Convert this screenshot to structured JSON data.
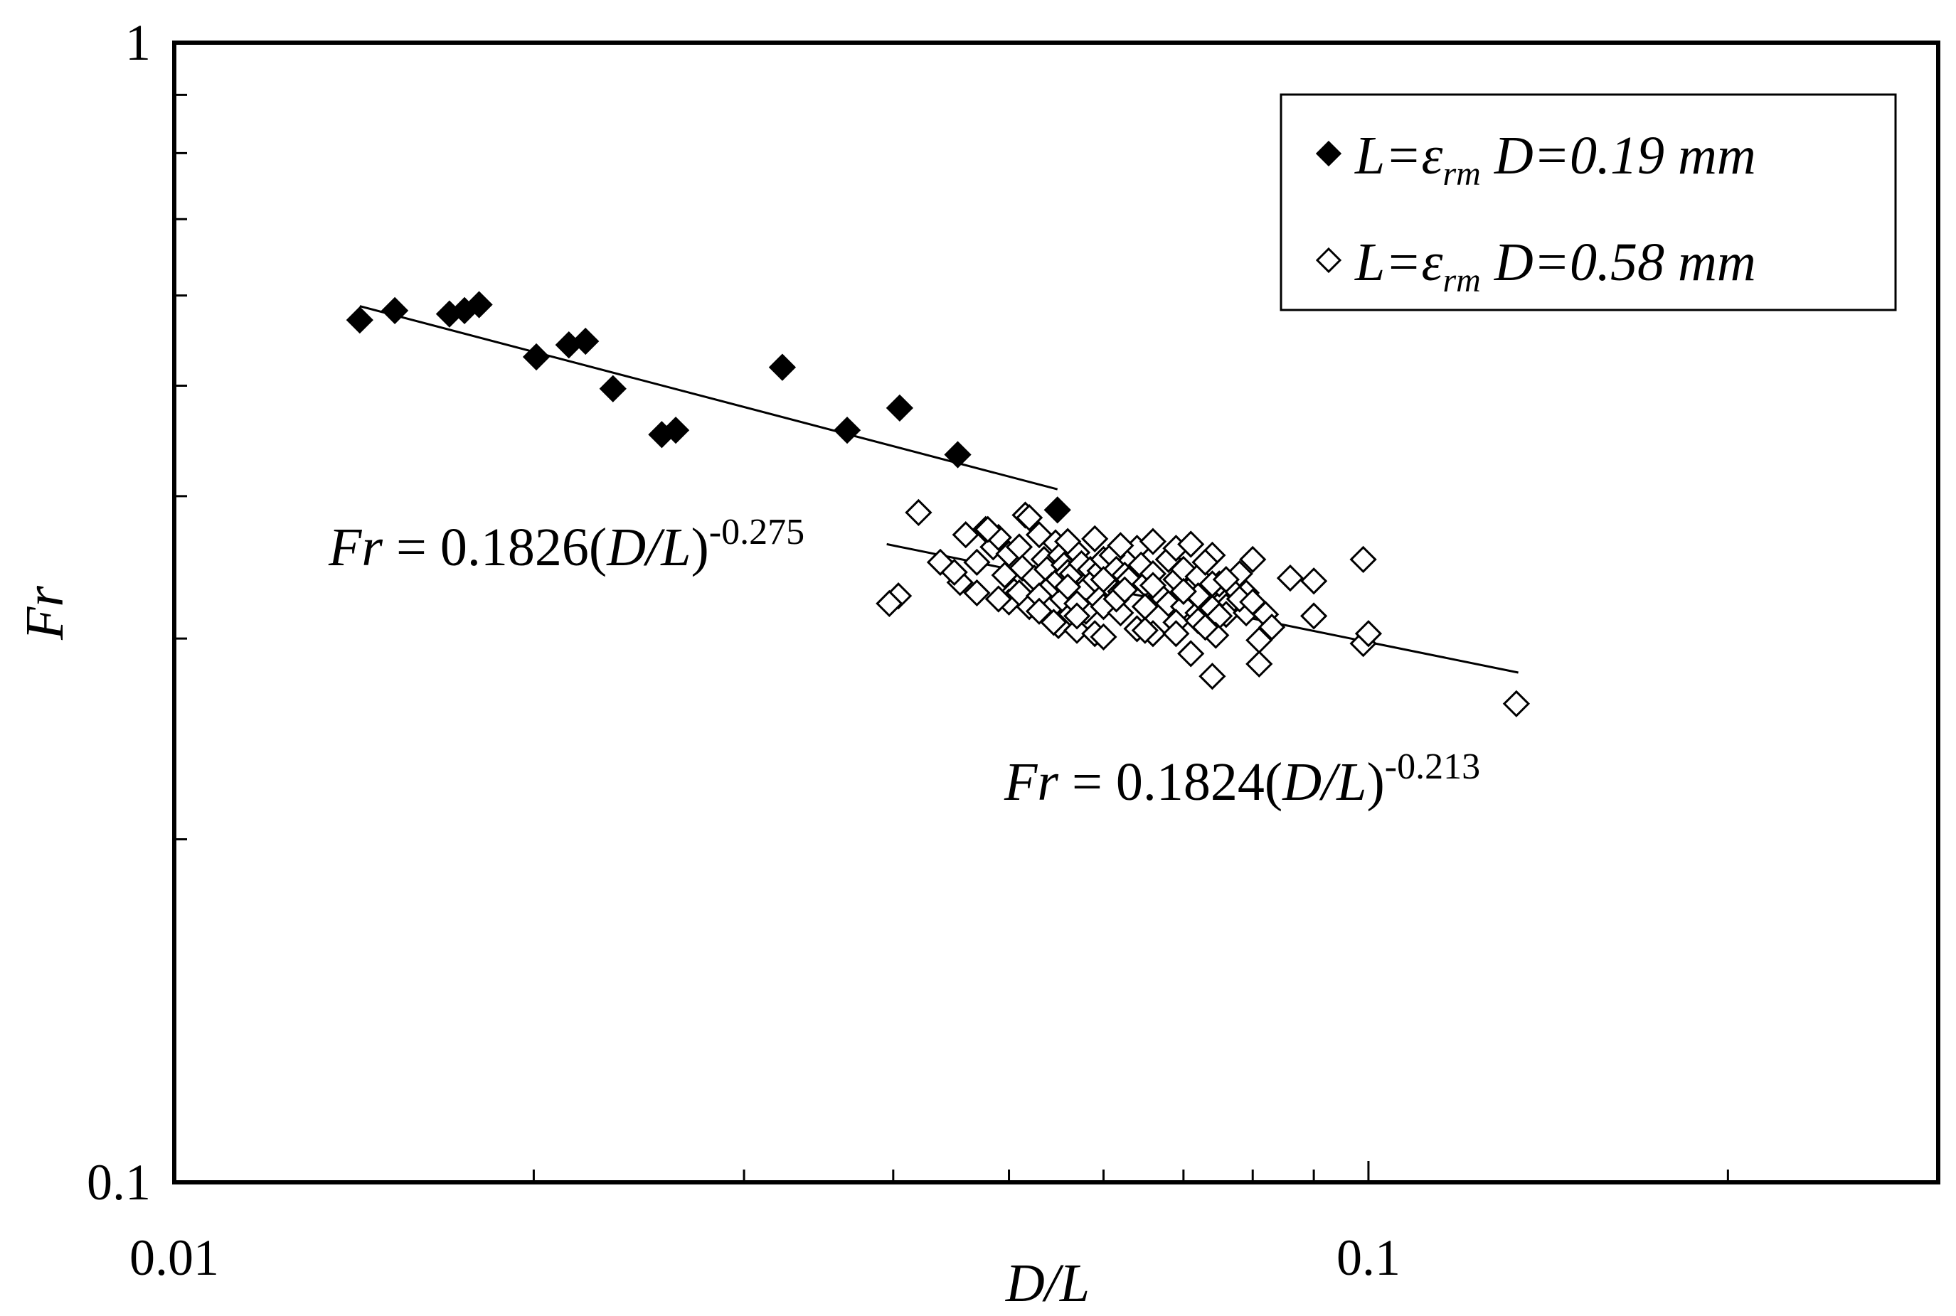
{
  "chart_data": {
    "type": "scatter",
    "xscale": "log",
    "yscale": "log",
    "xlim": [
      0.01,
      0.3
    ],
    "ylim": [
      0.1,
      1
    ],
    "xlabel": "D/L",
    "ylabel": "Fr",
    "xticks": [
      {
        "value": 0.01,
        "label": "0.01"
      },
      {
        "value": 0.1,
        "label": "0.1"
      }
    ],
    "yticks": [
      {
        "value": 0.1,
        "label": "0.1"
      },
      {
        "value": 1,
        "label": "1"
      }
    ],
    "legend": {
      "position": "top-right",
      "entries": [
        {
          "prefix": "L=ε",
          "subscript": "rm",
          "suffix": " D=0.19 mm",
          "marker": "filled-diamond"
        },
        {
          "prefix": "L=ε",
          "subscript": "rm",
          "suffix": " D=0.58 mm",
          "marker": "open-diamond"
        }
      ]
    },
    "series": [
      {
        "name": "L=εrm D=0.19 mm",
        "marker": "filled-diamond",
        "points": [
          [
            0.0143,
            0.571
          ],
          [
            0.0153,
            0.582
          ],
          [
            0.017,
            0.578
          ],
          [
            0.0175,
            0.582
          ],
          [
            0.018,
            0.589
          ],
          [
            0.0201,
            0.53
          ],
          [
            0.0214,
            0.543
          ],
          [
            0.0221,
            0.547
          ],
          [
            0.0233,
            0.497
          ],
          [
            0.0256,
            0.453
          ],
          [
            0.0263,
            0.457
          ],
          [
            0.0323,
            0.519
          ],
          [
            0.0366,
            0.457
          ],
          [
            0.0405,
            0.478
          ],
          [
            0.0453,
            0.435
          ],
          [
            0.0549,
            0.389
          ]
        ]
      },
      {
        "name": "L=εrm D=0.58 mm",
        "marker": "open-diamond",
        "points": [
          [
            0.0404,
            0.327
          ],
          [
            0.042,
            0.387
          ],
          [
            0.0438,
            0.35
          ],
          [
            0.0455,
            0.336
          ],
          [
            0.047,
            0.35
          ],
          [
            0.0478,
            0.374
          ],
          [
            0.0485,
            0.361
          ],
          [
            0.049,
            0.368
          ],
          [
            0.0496,
            0.341
          ],
          [
            0.05,
            0.356
          ],
          [
            0.0505,
            0.33
          ],
          [
            0.051,
            0.361
          ],
          [
            0.0513,
            0.346
          ],
          [
            0.0516,
            0.385
          ],
          [
            0.052,
            0.383
          ],
          [
            0.0525,
            0.339
          ],
          [
            0.053,
            0.37
          ],
          [
            0.0535,
            0.352
          ],
          [
            0.0538,
            0.345
          ],
          [
            0.0543,
            0.334
          ],
          [
            0.0547,
            0.364
          ],
          [
            0.055,
            0.338
          ],
          [
            0.0552,
            0.355
          ],
          [
            0.0556,
            0.348
          ],
          [
            0.056,
            0.343
          ],
          [
            0.0565,
            0.342
          ],
          [
            0.057,
            0.357
          ],
          [
            0.0575,
            0.349
          ],
          [
            0.058,
            0.332
          ],
          [
            0.0585,
            0.345
          ],
          [
            0.059,
            0.338
          ],
          [
            0.0596,
            0.344
          ],
          [
            0.06,
            0.352
          ],
          [
            0.0605,
            0.335
          ],
          [
            0.061,
            0.355
          ],
          [
            0.0615,
            0.345
          ],
          [
            0.062,
            0.33
          ],
          [
            0.0625,
            0.341
          ],
          [
            0.063,
            0.338
          ],
          [
            0.064,
            0.36
          ],
          [
            0.0645,
            0.348
          ],
          [
            0.065,
            0.335
          ],
          [
            0.066,
            0.342
          ],
          [
            0.067,
            0.327
          ],
          [
            0.068,
            0.352
          ],
          [
            0.069,
            0.338
          ],
          [
            0.07,
            0.345
          ],
          [
            0.071,
            0.332
          ],
          [
            0.072,
            0.34
          ],
          [
            0.073,
            0.328
          ],
          [
            0.074,
            0.355
          ],
          [
            0.075,
            0.335
          ],
          [
            0.076,
            0.32
          ],
          [
            0.077,
            0.333
          ],
          [
            0.078,
            0.342
          ],
          [
            0.079,
            0.329
          ],
          [
            0.08,
            0.352
          ],
          [
            0.056,
            0.313
          ],
          [
            0.058,
            0.317
          ],
          [
            0.06,
            0.32
          ],
          [
            0.062,
            0.316
          ],
          [
            0.065,
            0.32
          ],
          [
            0.068,
            0.322
          ],
          [
            0.07,
            0.32
          ],
          [
            0.072,
            0.316
          ],
          [
            0.074,
            0.319
          ],
          [
            0.076,
            0.315
          ],
          [
            0.079,
            0.316
          ],
          [
            0.055,
            0.308
          ],
          [
            0.057,
            0.305
          ],
          [
            0.059,
            0.303
          ],
          [
            0.064,
            0.306
          ],
          [
            0.066,
            0.303
          ],
          [
            0.069,
            0.31
          ],
          [
            0.075,
            0.314
          ],
          [
            0.05,
            0.323
          ],
          [
            0.052,
            0.32
          ],
          [
            0.054,
            0.318
          ],
          [
            0.0615,
            0.325
          ],
          [
            0.072,
            0.327
          ],
          [
            0.078,
            0.325
          ],
          [
            0.047,
            0.329
          ],
          [
            0.049,
            0.325
          ],
          [
            0.051,
            0.329
          ],
          [
            0.053,
            0.327
          ],
          [
            0.0545,
            0.31
          ],
          [
            0.056,
            0.333
          ],
          [
            0.057,
            0.322
          ],
          [
            0.06,
            0.338
          ],
          [
            0.0625,
            0.331
          ],
          [
            0.066,
            0.334
          ],
          [
            0.07,
            0.33
          ],
          [
            0.074,
            0.335
          ],
          [
            0.076,
            0.338
          ],
          [
            0.056,
            0.365
          ],
          [
            0.059,
            0.367
          ],
          [
            0.062,
            0.362
          ],
          [
            0.066,
            0.365
          ],
          [
            0.069,
            0.36
          ],
          [
            0.071,
            0.363
          ],
          [
            0.073,
            0.35
          ],
          [
            0.08,
            0.323
          ],
          [
            0.082,
            0.315
          ],
          [
            0.081,
            0.299
          ],
          [
            0.083,
            0.307
          ],
          [
            0.086,
            0.339
          ],
          [
            0.09,
            0.337
          ],
          [
            0.09,
            0.314
          ],
          [
            0.099,
            0.352
          ],
          [
            0.099,
            0.297
          ],
          [
            0.081,
            0.285
          ],
          [
            0.069,
            0.303
          ],
          [
            0.071,
            0.291
          ],
          [
            0.06,
            0.301
          ],
          [
            0.057,
            0.314
          ],
          [
            0.1,
            0.303
          ],
          [
            0.065,
            0.305
          ],
          [
            0.072,
            0.311
          ],
          [
            0.0745,
            0.302
          ],
          [
            0.073,
            0.307
          ],
          [
            0.074,
            0.278
          ],
          [
            0.133,
            0.263
          ],
          [
            0.0397,
            0.322
          ],
          [
            0.045,
            0.343
          ],
          [
            0.046,
            0.37
          ],
          [
            0.048,
            0.374
          ],
          [
            0.053,
            0.317
          ]
        ]
      }
    ],
    "fits": [
      {
        "series": "L=εrm D=0.19 mm",
        "coef": 0.1826,
        "exponent": -0.275,
        "x_range": [
          0.0143,
          0.0549
        ],
        "label_main": "0.1826(",
        "label_var": "D/L",
        "label_close": ")",
        "label_exp": "-0.275"
      },
      {
        "series": "L=εrm D=0.58 mm",
        "coef": 0.1824,
        "exponent": -0.213,
        "x_range": [
          0.0395,
          0.1335
        ],
        "label_main": "0.1824(",
        "label_var": "D/L",
        "label_close": ")",
        "label_exp": "-0.213"
      }
    ],
    "fit_label_prefix": "Fr",
    "fit_label_equals": " = "
  }
}
